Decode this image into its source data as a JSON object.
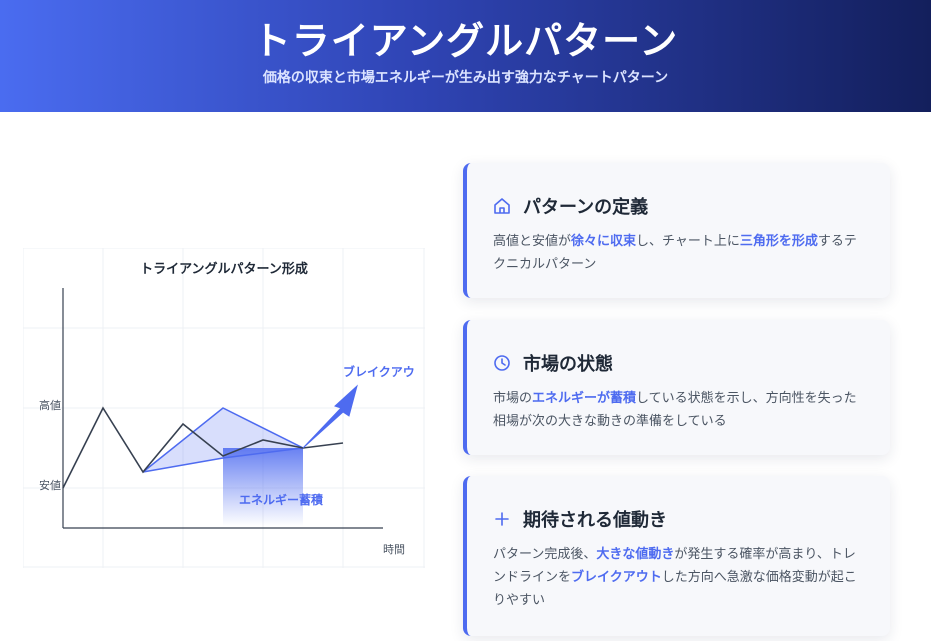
{
  "header": {
    "title": "トライアングルパターン",
    "subtitle": "価格の収束と市場エネルギーが生み出す強力なチャートパターン"
  },
  "diagram": {
    "title": "トライアングルパターン形成",
    "label_high": "高値",
    "label_low": "安値",
    "label_time": "時間",
    "label_breakout": "ブレイクアウ",
    "label_energy": "エネルギー蓄積"
  },
  "cards": [
    {
      "icon": "home-icon",
      "title": "パターンの定義",
      "body": [
        {
          "t": "高値と安値が",
          "hl": false
        },
        {
          "t": "徐々に収束",
          "hl": true
        },
        {
          "t": "し、チャート上に",
          "hl": false
        },
        {
          "t": "三角形を形成",
          "hl": true
        },
        {
          "t": "するテクニカルパターン",
          "hl": false
        }
      ]
    },
    {
      "icon": "clock-icon",
      "title": "市場の状態",
      "body": [
        {
          "t": "市場の",
          "hl": false
        },
        {
          "t": "エネルギーが蓄積",
          "hl": true
        },
        {
          "t": "している状態を示し、方向性を失った相場が次の大きな動きの準備をしている",
          "hl": false
        }
      ]
    },
    {
      "icon": "plus-icon",
      "title": "期待される値動き",
      "body": [
        {
          "t": "パターン完成後、",
          "hl": false
        },
        {
          "t": "大きな値動き",
          "hl": true
        },
        {
          "t": "が発生する確率が高まり、トレンドラインを",
          "hl": false
        },
        {
          "t": "ブレイクアウト",
          "hl": true
        },
        {
          "t": "した方向へ急激な価格変動が起こりやすい",
          "hl": false
        }
      ]
    }
  ],
  "colors": {
    "accent": "#4e6bf0",
    "header_start": "#4a6cf0",
    "header_end": "#131f5c",
    "price_line": "#374151"
  }
}
